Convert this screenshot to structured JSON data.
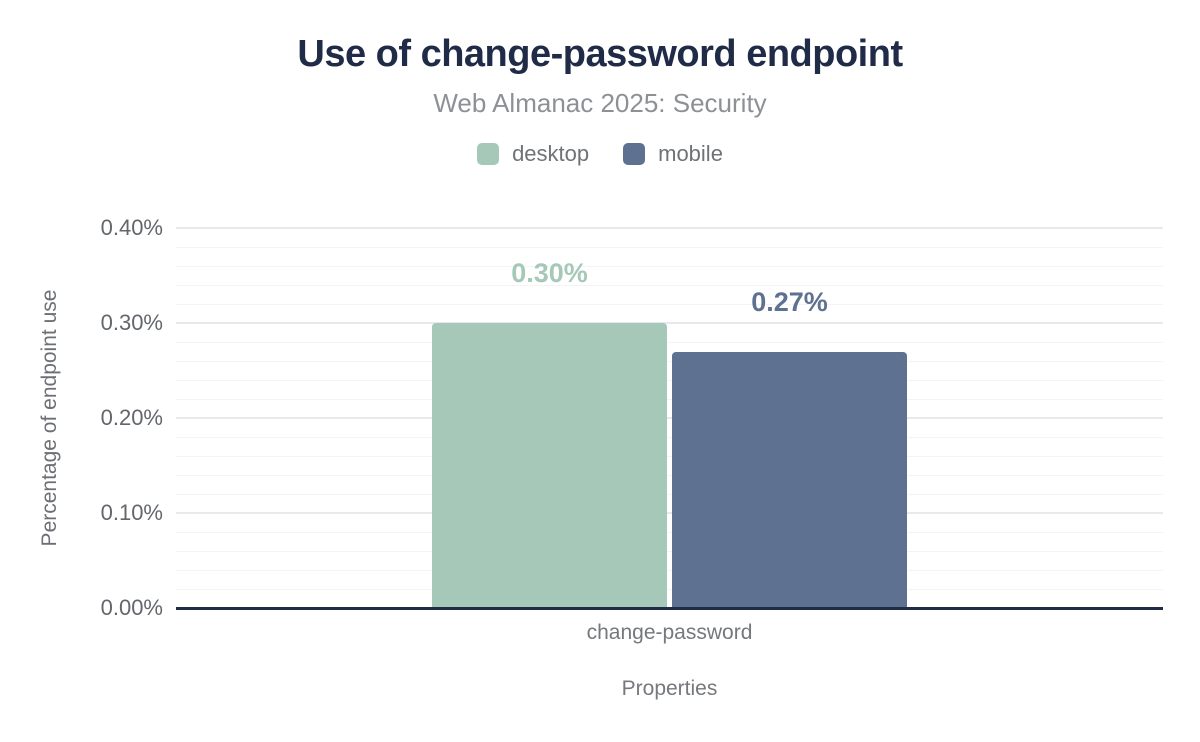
{
  "title": "Use of change-password endpoint",
  "subtitle": "Web Almanac 2025: Security",
  "colors": {
    "title": "#1f2b47",
    "subtitle": "#8d9196",
    "axis_line": "#1f2b47",
    "tick_label": "#63676c",
    "axis_title": "#6c7074",
    "grid_major": "#e8e9eb",
    "grid_minor": "#f4f4f6",
    "desktop": "#a5c8b8",
    "mobile": "#5e7190"
  },
  "chart_data": {
    "type": "bar",
    "title": "Use of change-password endpoint",
    "subtitle": "Web Almanac 2025: Security",
    "categories": [
      "change-password"
    ],
    "series": [
      {
        "name": "desktop",
        "values": [
          0.3
        ],
        "value_labels": [
          "0.30%"
        ],
        "color": "#a5c8b8"
      },
      {
        "name": "mobile",
        "values": [
          0.27
        ],
        "value_labels": [
          "0.27%"
        ],
        "color": "#5e7190"
      }
    ],
    "xlabel": "Properties",
    "ylabel": "Percentage of endpoint use",
    "ylim": [
      0,
      0.4
    ],
    "yticks": [
      {
        "value": 0.0,
        "label": "0.00%"
      },
      {
        "value": 0.1,
        "label": "0.10%"
      },
      {
        "value": 0.2,
        "label": "0.20%"
      },
      {
        "value": 0.3,
        "label": "0.30%"
      },
      {
        "value": 0.4,
        "label": "0.40%"
      }
    ],
    "grid": true,
    "grid_minor_step": 0.02,
    "grid_major_step": 0.1,
    "legend_position": "top"
  }
}
